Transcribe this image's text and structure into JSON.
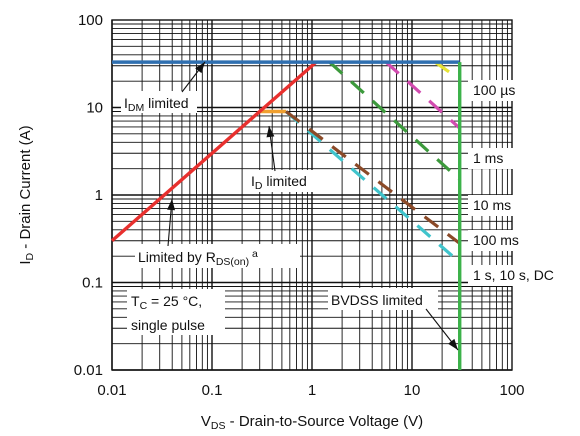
{
  "chart_data": {
    "type": "line",
    "x_scale": "log",
    "y_scale": "log",
    "xlim": [
      0.01,
      100
    ],
    "ylim": [
      0.01,
      100
    ],
    "grid": true,
    "x_ticks": [
      0.01,
      0.1,
      1,
      10,
      100
    ],
    "y_ticks": [
      0.01,
      0.1,
      1,
      10,
      100
    ],
    "x_tick_labels": [
      "0.01",
      "0.1",
      "1",
      "10",
      "100"
    ],
    "y_tick_labels": [
      "0.01",
      "0.1",
      "1",
      "10",
      "100"
    ],
    "xlabel": {
      "main": "V",
      "sub": "DS",
      "rest": " - Drain-to-Source Voltage (V)"
    },
    "ylabel": {
      "main": "I",
      "sub": "D",
      "rest": " - Drain Current (A)"
    },
    "series": [
      {
        "name": "I_DM limited",
        "color": "#2f6fb0",
        "style": "solid",
        "x": [
          0.01,
          30
        ],
        "y": [
          33,
          33
        ]
      },
      {
        "name": "R_DS(on) limited",
        "color": "#e8302e",
        "style": "solid",
        "x": [
          0.01,
          1.1
        ],
        "y": [
          0.3,
          33
        ]
      },
      {
        "name": "BVDSS limited",
        "color": "#3cb24a",
        "style": "solid",
        "x": [
          30,
          30
        ],
        "y": [
          0.01,
          33
        ]
      },
      {
        "name": "100 µs",
        "color": "#e6e335",
        "style": "dashed",
        "x": [
          17,
          30
        ],
        "y": [
          33,
          21
        ]
      },
      {
        "name": "1 ms",
        "color": "#d24bb0",
        "style": "dashed",
        "x": [
          5.5,
          30
        ],
        "y": [
          33,
          5.8
        ]
      },
      {
        "name": "10 ms",
        "color": "#3c9a3c",
        "style": "dashed",
        "x": [
          1.5,
          30
        ],
        "y": [
          33,
          1.5
        ]
      },
      {
        "name": "100 ms",
        "color": "#8b4a28",
        "style": "dashed",
        "x": [
          0.55,
          30
        ],
        "y": [
          9.0,
          0.28
        ]
      },
      {
        "name": "1 s, 10 s, DC",
        "color": "#40c4cc",
        "style": "dashed",
        "x": [
          0.55,
          30
        ],
        "y": [
          9.0,
          0.17
        ]
      },
      {
        "name": "I_D limited",
        "color": "#f0a030",
        "style": "solid",
        "x": [
          0.3,
          0.55
        ],
        "y": [
          9.0,
          9.0
        ]
      }
    ],
    "labels": {
      "idm": {
        "main": "I",
        "sub": "DM",
        "rest": " limited"
      },
      "id": {
        "main": "I",
        "sub": "D",
        "rest": " limited"
      },
      "rds": {
        "main": "Limited by R",
        "sub": "DS(on)",
        "sup": "a"
      },
      "tc_line1": {
        "main": "T",
        "sub": "C",
        "rest": " = 25 °C,"
      },
      "tc_line2": "single pulse",
      "bvdss": "BVDSS limited",
      "right": [
        "100 µs",
        "1 ms",
        "10 ms",
        "100 ms",
        "1 s, 10 s, DC"
      ]
    }
  }
}
